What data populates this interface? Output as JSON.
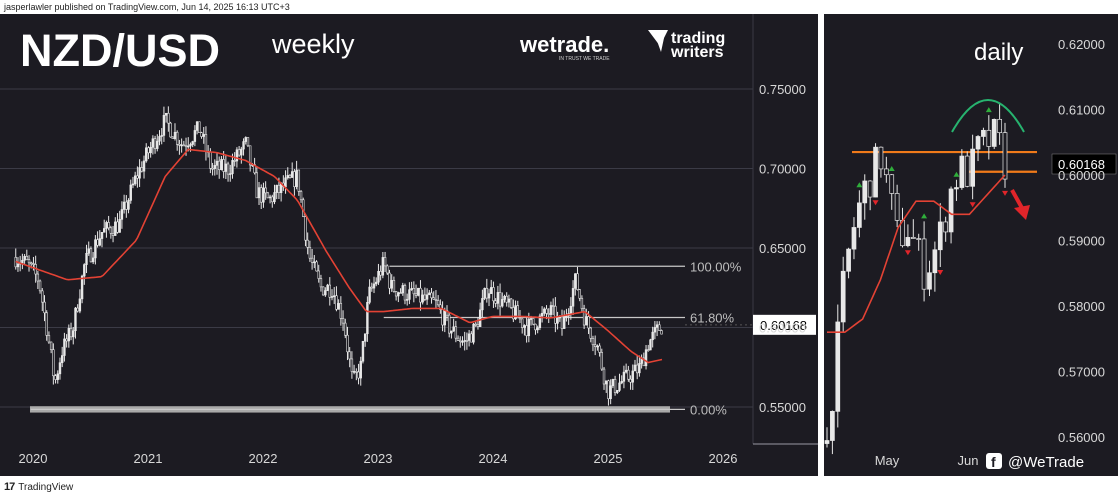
{
  "header": {
    "credit": "jasperlawler published on TradingView.com, Jun 14, 2025 16:13 UTC+3"
  },
  "footer": {
    "brand": "TradingView",
    "logo_glyph": "17"
  },
  "colors": {
    "background": "#1c1b22",
    "candle": "#e8e8e8",
    "ma": "#e34234",
    "level_line": "#c8c8c8",
    "support_zone": "#a9a9a9",
    "resistance_orange": "#f07a1a",
    "arc_green": "#27b36f",
    "up_arrow": "#2fae3b",
    "down_arrow": "#e0252a",
    "price_box": "#ffffff"
  },
  "weekly": {
    "pair_title": "NZD/USD",
    "timeframe": "weekly",
    "brand_wetrade": "wetrade.",
    "brand_wetrade_tag": "IN TRUST WE TRADE",
    "brand_writers_line1": "trading",
    "brand_writers_line2": "writers",
    "brand_writers_icon": "trading-writers-logo-icon",
    "price_label": "0.60168",
    "fib_labels": [
      "100.00%",
      "61.80%",
      "0.00%"
    ]
  },
  "daily": {
    "timeframe": "daily",
    "price_label": "0.60168",
    "social_icon": "facebook-icon",
    "social_handle": "@WeTrade"
  },
  "chart_data": [
    {
      "type": "candlestick",
      "name": "NZD/USD weekly",
      "title": "NZD/USD",
      "subtitle": "weekly",
      "x_ticks": [
        "2020",
        "2021",
        "2022",
        "2023",
        "2024",
        "2025",
        "2026"
      ],
      "y_ticks": [
        "0.75000",
        "0.70000",
        "0.65000",
        "0.60000",
        "0.55000"
      ],
      "ylim": [
        0.53,
        0.77
      ],
      "last_price": 0.60168,
      "grid": false,
      "moving_average": "red line",
      "fibonacci": [
        {
          "label": "100.00%",
          "price": 0.6385
        },
        {
          "label": "61.80%",
          "price": 0.6063
        },
        {
          "label": "0.00%",
          "price": 0.5485
        }
      ],
      "support_zone": [
        0.5465,
        0.5505
      ],
      "close_path": [
        [
          2019.83,
          0.645
        ],
        [
          2019.95,
          0.64
        ],
        [
          2020.05,
          0.63
        ],
        [
          2020.12,
          0.6
        ],
        [
          2020.19,
          0.565
        ],
        [
          2020.25,
          0.585
        ],
        [
          2020.35,
          0.6
        ],
        [
          2020.45,
          0.64
        ],
        [
          2020.6,
          0.66
        ],
        [
          2020.75,
          0.665
        ],
        [
          2020.9,
          0.695
        ],
        [
          2021.0,
          0.71
        ],
        [
          2021.15,
          0.73
        ],
        [
          2021.3,
          0.715
        ],
        [
          2021.45,
          0.725
        ],
        [
          2021.55,
          0.7
        ],
        [
          2021.7,
          0.7
        ],
        [
          2021.85,
          0.715
        ],
        [
          2021.95,
          0.685
        ],
        [
          2022.05,
          0.68
        ],
        [
          2022.2,
          0.69
        ],
        [
          2022.3,
          0.695
        ],
        [
          2022.4,
          0.645
        ],
        [
          2022.5,
          0.625
        ],
        [
          2022.6,
          0.625
        ],
        [
          2022.7,
          0.605
        ],
        [
          2022.78,
          0.565
        ],
        [
          2022.85,
          0.575
        ],
        [
          2022.92,
          0.62
        ],
        [
          2023.05,
          0.64
        ],
        [
          2023.12,
          0.625
        ],
        [
          2023.3,
          0.62
        ],
        [
          2023.5,
          0.615
        ],
        [
          2023.62,
          0.6
        ],
        [
          2023.75,
          0.59
        ],
        [
          2023.85,
          0.6
        ],
        [
          2023.95,
          0.625
        ],
        [
          2024.1,
          0.615
        ],
        [
          2024.3,
          0.6
        ],
        [
          2024.5,
          0.61
        ],
        [
          2024.6,
          0.6
        ],
        [
          2024.72,
          0.63
        ],
        [
          2024.8,
          0.605
        ],
        [
          2024.9,
          0.59
        ],
        [
          2025.0,
          0.56
        ],
        [
          2025.1,
          0.565
        ],
        [
          2025.2,
          0.57
        ],
        [
          2025.28,
          0.575
        ],
        [
          2025.35,
          0.59
        ],
        [
          2025.45,
          0.6
        ],
        [
          2025.48,
          0.6017
        ]
      ],
      "ma_path": [
        [
          2019.83,
          0.642
        ],
        [
          2020.3,
          0.63
        ],
        [
          2020.6,
          0.632
        ],
        [
          2020.9,
          0.655
        ],
        [
          2021.15,
          0.695
        ],
        [
          2021.35,
          0.712
        ],
        [
          2021.6,
          0.71
        ],
        [
          2021.85,
          0.705
        ],
        [
          2022.1,
          0.695
        ],
        [
          2022.3,
          0.68
        ],
        [
          2022.55,
          0.648
        ],
        [
          2022.75,
          0.625
        ],
        [
          2022.9,
          0.61
        ],
        [
          2023.05,
          0.61
        ],
        [
          2023.3,
          0.612
        ],
        [
          2023.55,
          0.612
        ],
        [
          2023.8,
          0.603
        ],
        [
          2024.0,
          0.607
        ],
        [
          2024.25,
          0.607
        ],
        [
          2024.5,
          0.606
        ],
        [
          2024.8,
          0.61
        ],
        [
          2025.0,
          0.598
        ],
        [
          2025.2,
          0.585
        ],
        [
          2025.35,
          0.578
        ],
        [
          2025.48,
          0.58
        ]
      ]
    },
    {
      "type": "candlestick",
      "name": "NZD/USD daily",
      "subtitle": "daily",
      "x_ticks": [
        "May",
        "Jun"
      ],
      "y_ticks": [
        "0.62000",
        "0.61000",
        "0.60000",
        "0.59000",
        "0.58000",
        "0.57000",
        "0.56000"
      ],
      "ylim": [
        0.559,
        0.6225
      ],
      "last_price": 0.60168,
      "grid": false,
      "moving_average": "red line",
      "resistance_levels": [
        0.6035,
        0.6005
      ],
      "projection": "rounded top arc with arrow pointing lower",
      "close_path": [
        [
          0.0,
          0.559
        ],
        [
          0.05,
          0.572
        ],
        [
          0.1,
          0.585
        ],
        [
          0.15,
          0.592
        ],
        [
          0.2,
          0.597
        ],
        [
          0.25,
          0.6
        ],
        [
          0.3,
          0.603
        ],
        [
          0.35,
          0.597
        ],
        [
          0.4,
          0.59
        ],
        [
          0.45,
          0.592
        ],
        [
          0.5,
          0.589
        ],
        [
          0.55,
          0.585
        ],
        [
          0.6,
          0.588
        ],
        [
          0.65,
          0.592
        ],
        [
          0.7,
          0.598
        ],
        [
          0.75,
          0.601
        ],
        [
          0.8,
          0.6
        ],
        [
          0.85,
          0.604
        ],
        [
          0.9,
          0.605
        ],
        [
          0.95,
          0.606
        ],
        [
          1.0,
          0.6017
        ]
      ],
      "ma_path": [
        [
          0.0,
          0.576
        ],
        [
          0.1,
          0.576
        ],
        [
          0.2,
          0.578
        ],
        [
          0.3,
          0.584
        ],
        [
          0.4,
          0.592
        ],
        [
          0.5,
          0.596
        ],
        [
          0.6,
          0.596
        ],
        [
          0.7,
          0.594
        ],
        [
          0.8,
          0.594
        ],
        [
          0.9,
          0.597
        ],
        [
          1.0,
          0.6
        ]
      ]
    }
  ]
}
